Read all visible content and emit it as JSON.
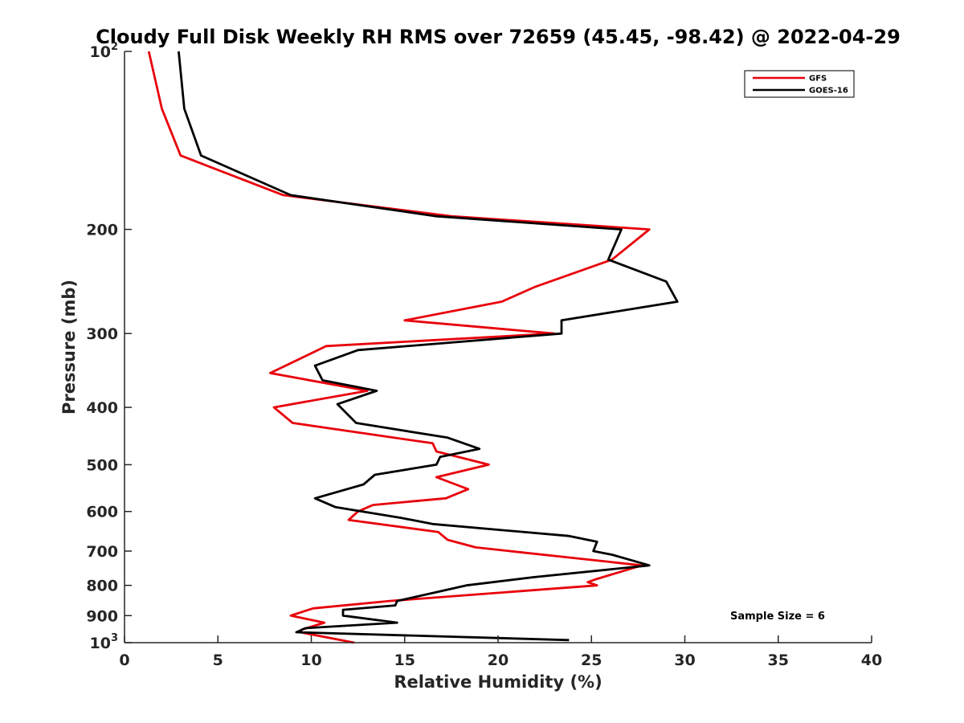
{
  "chart_data": {
    "type": "line",
    "title": "Cloudy Full Disk Weekly RH RMS over 72659 (45.45, -98.42) @ 2022-04-29",
    "xlabel": "Relative Humidity (%)",
    "ylabel": "Pressure (mb)",
    "xlim": [
      0,
      40
    ],
    "ylim": [
      100,
      1000
    ],
    "y_scale": "log",
    "y_reversed": true,
    "x_ticks": [
      0,
      5,
      10,
      15,
      20,
      25,
      30,
      35,
      40
    ],
    "x_tick_labels": [
      "0",
      "5",
      "10",
      "15",
      "20",
      "25",
      "30",
      "35",
      "40"
    ],
    "y_ticks": [
      100,
      200,
      300,
      400,
      500,
      600,
      700,
      800,
      900,
      1000
    ],
    "y_tick_labels": [
      {
        "base": "10",
        "sup": "2"
      },
      {
        "base": "200",
        "sup": ""
      },
      {
        "base": "300",
        "sup": ""
      },
      {
        "base": "400",
        "sup": ""
      },
      {
        "base": "500",
        "sup": ""
      },
      {
        "base": "600",
        "sup": ""
      },
      {
        "base": "700",
        "sup": ""
      },
      {
        "base": "800",
        "sup": ""
      },
      {
        "base": "900",
        "sup": ""
      },
      {
        "base": "10",
        "sup": "3"
      }
    ],
    "grid": false,
    "legend_position": "top-right",
    "annotation": "Sample Size = 6",
    "series": [
      {
        "name": "GFS",
        "color": "#e8000b",
        "points": [
          {
            "x": 1.3,
            "y": 100
          },
          {
            "x": 2.0,
            "y": 125
          },
          {
            "x": 3.0,
            "y": 150
          },
          {
            "x": 8.5,
            "y": 175
          },
          {
            "x": 17.5,
            "y": 190
          },
          {
            "x": 28.1,
            "y": 200
          },
          {
            "x": 26.1,
            "y": 225
          },
          {
            "x": 22.0,
            "y": 250
          },
          {
            "x": 20.2,
            "y": 265
          },
          {
            "x": 15.0,
            "y": 285
          },
          {
            "x": 23.0,
            "y": 300
          },
          {
            "x": 10.8,
            "y": 315
          },
          {
            "x": 7.8,
            "y": 350
          },
          {
            "x": 13.0,
            "y": 375
          },
          {
            "x": 8.0,
            "y": 400
          },
          {
            "x": 9.0,
            "y": 425
          },
          {
            "x": 16.5,
            "y": 460
          },
          {
            "x": 16.7,
            "y": 475
          },
          {
            "x": 19.5,
            "y": 500
          },
          {
            "x": 16.7,
            "y": 525
          },
          {
            "x": 18.4,
            "y": 550
          },
          {
            "x": 17.2,
            "y": 570
          },
          {
            "x": 13.3,
            "y": 585
          },
          {
            "x": 12.5,
            "y": 600
          },
          {
            "x": 12.0,
            "y": 620
          },
          {
            "x": 16.8,
            "y": 650
          },
          {
            "x": 17.3,
            "y": 670
          },
          {
            "x": 18.8,
            "y": 690
          },
          {
            "x": 27.7,
            "y": 740
          },
          {
            "x": 25.3,
            "y": 780
          },
          {
            "x": 24.8,
            "y": 790
          },
          {
            "x": 25.3,
            "y": 800
          },
          {
            "x": 14.2,
            "y": 850
          },
          {
            "x": 10.1,
            "y": 875
          },
          {
            "x": 8.9,
            "y": 900
          },
          {
            "x": 10.7,
            "y": 925
          },
          {
            "x": 9.5,
            "y": 950
          },
          {
            "x": 9.4,
            "y": 960
          },
          {
            "x": 12.3,
            "y": 1000
          }
        ]
      },
      {
        "name": "GOES-16",
        "color": "#000000",
        "points": [
          {
            "x": 2.9,
            "y": 100
          },
          {
            "x": 3.2,
            "y": 125
          },
          {
            "x": 4.1,
            "y": 150
          },
          {
            "x": 8.9,
            "y": 175
          },
          {
            "x": 16.7,
            "y": 190
          },
          {
            "x": 26.6,
            "y": 200
          },
          {
            "x": 25.9,
            "y": 225
          },
          {
            "x": 29.0,
            "y": 245
          },
          {
            "x": 29.6,
            "y": 265
          },
          {
            "x": 23.4,
            "y": 285
          },
          {
            "x": 23.4,
            "y": 300
          },
          {
            "x": 12.5,
            "y": 320
          },
          {
            "x": 10.2,
            "y": 340
          },
          {
            "x": 10.6,
            "y": 360
          },
          {
            "x": 13.5,
            "y": 375
          },
          {
            "x": 11.4,
            "y": 395
          },
          {
            "x": 12.4,
            "y": 425
          },
          {
            "x": 17.3,
            "y": 450
          },
          {
            "x": 19.0,
            "y": 470
          },
          {
            "x": 16.9,
            "y": 485
          },
          {
            "x": 16.7,
            "y": 500
          },
          {
            "x": 13.4,
            "y": 520
          },
          {
            "x": 12.8,
            "y": 540
          },
          {
            "x": 10.2,
            "y": 570
          },
          {
            "x": 11.3,
            "y": 590
          },
          {
            "x": 14.8,
            "y": 615
          },
          {
            "x": 16.5,
            "y": 630
          },
          {
            "x": 23.8,
            "y": 660
          },
          {
            "x": 25.3,
            "y": 675
          },
          {
            "x": 25.1,
            "y": 700
          },
          {
            "x": 26.1,
            "y": 710
          },
          {
            "x": 28.1,
            "y": 740
          },
          {
            "x": 21.9,
            "y": 775
          },
          {
            "x": 18.3,
            "y": 800
          },
          {
            "x": 14.6,
            "y": 850
          },
          {
            "x": 14.5,
            "y": 865
          },
          {
            "x": 11.7,
            "y": 880
          },
          {
            "x": 11.7,
            "y": 900
          },
          {
            "x": 14.6,
            "y": 925
          },
          {
            "x": 9.7,
            "y": 945
          },
          {
            "x": 9.2,
            "y": 960
          },
          {
            "x": 23.8,
            "y": 990
          }
        ]
      }
    ]
  }
}
